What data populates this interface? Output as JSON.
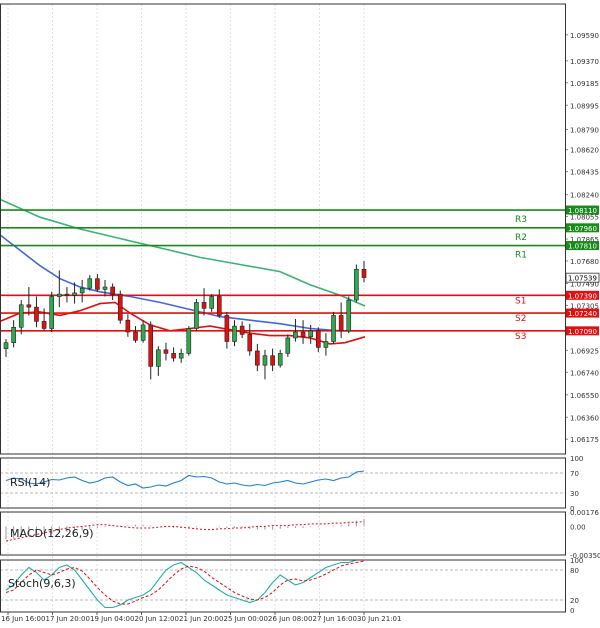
{
  "chart_data": {
    "type": "candlestick",
    "main": {
      "y_range": [
        1.0605,
        1.0985
      ],
      "y_ticks": [
        "1.09590",
        "1.09370",
        "1.09185",
        "1.08995",
        "1.08790",
        "1.08620",
        "1.08435",
        "1.08240",
        "1.08055",
        "1.07865",
        "1.07680",
        "1.07490",
        "1.07305",
        "1.06925",
        "1.06740",
        "1.06550",
        "1.06360",
        "1.06175"
      ],
      "price_tag": "1.07539",
      "price": 1.07539,
      "levels": [
        {
          "name": "R3",
          "value": 1.0811,
          "label": "1.08110",
          "color": "#1a8a1a"
        },
        {
          "name": "R2",
          "value": 1.0796,
          "label": "1.07960",
          "color": "#1a8a1a"
        },
        {
          "name": "R1",
          "value": 1.0781,
          "label": "1.07810",
          "color": "#1a8a1a"
        },
        {
          "name": "S1",
          "value": 1.0739,
          "label": "1.07390",
          "color": "#dd1111"
        },
        {
          "name": "S2",
          "value": 1.0724,
          "label": "1.07240",
          "color": "#dd1111"
        },
        {
          "name": "S3",
          "value": 1.0709,
          "label": "1.07090",
          "color": "#dd1111"
        }
      ],
      "candles": [
        [
          1.0694,
          1.0702,
          1.0687,
          1.0699
        ],
        [
          1.0699,
          1.0718,
          1.0695,
          1.0712
        ],
        [
          1.0712,
          1.0735,
          1.0706,
          1.0731
        ],
        [
          1.0731,
          1.0746,
          1.0722,
          1.0729
        ],
        [
          1.0729,
          1.0738,
          1.0712,
          1.0717
        ],
        [
          1.0717,
          1.0728,
          1.0709,
          1.0711
        ],
        [
          1.0711,
          1.0742,
          1.0708,
          1.0738
        ],
        [
          1.0738,
          1.076,
          1.0729,
          1.074
        ],
        [
          1.074,
          1.0746,
          1.0733,
          1.0739
        ],
        [
          1.0739,
          1.075,
          1.0732,
          1.0741
        ],
        [
          1.0741,
          1.0752,
          1.0733,
          1.0745
        ],
        [
          1.0745,
          1.0756,
          1.0743,
          1.0753
        ],
        [
          1.0753,
          1.0757,
          1.0742,
          1.0744
        ],
        [
          1.0744,
          1.0752,
          1.0738,
          1.0746
        ],
        [
          1.0746,
          1.0749,
          1.0735,
          1.074
        ],
        [
          1.074,
          1.0743,
          1.0715,
          1.0718
        ],
        [
          1.0718,
          1.0723,
          1.0704,
          1.0708
        ],
        [
          1.0708,
          1.0713,
          1.0699,
          1.0701
        ],
        [
          1.0701,
          1.0718,
          1.0699,
          1.0714
        ],
        [
          1.0714,
          1.0717,
          1.0668,
          1.0679
        ],
        [
          1.0679,
          1.0696,
          1.0671,
          1.0693
        ],
        [
          1.0693,
          1.0699,
          1.0684,
          1.069
        ],
        [
          1.069,
          1.0695,
          1.0683,
          1.0686
        ],
        [
          1.0686,
          1.0694,
          1.0682,
          1.069
        ],
        [
          1.069,
          1.0713,
          1.0688,
          1.0711
        ],
        [
          1.0711,
          1.0736,
          1.0709,
          1.0733
        ],
        [
          1.0733,
          1.0745,
          1.0722,
          1.0728
        ],
        [
          1.0728,
          1.074,
          1.0725,
          1.0738
        ],
        [
          1.0738,
          1.0744,
          1.072,
          1.0722
        ],
        [
          1.0722,
          1.0725,
          1.0694,
          1.07
        ],
        [
          1.07,
          1.0718,
          1.0696,
          1.0713
        ],
        [
          1.0713,
          1.0717,
          1.0703,
          1.0706
        ],
        [
          1.0706,
          1.0715,
          1.0688,
          1.0692
        ],
        [
          1.0692,
          1.0698,
          1.0675,
          1.068
        ],
        [
          1.068,
          1.0693,
          1.0668,
          1.0688
        ],
        [
          1.0688,
          1.0694,
          1.0675,
          1.068
        ],
        [
          1.068,
          1.0693,
          1.0678,
          1.069
        ],
        [
          1.069,
          1.0706,
          1.0687,
          1.0703
        ],
        [
          1.0703,
          1.0719,
          1.07,
          1.0708
        ],
        [
          1.0708,
          1.0718,
          1.0698,
          1.0704
        ],
        [
          1.0704,
          1.0714,
          1.0698,
          1.0709
        ],
        [
          1.0709,
          1.0712,
          1.0691,
          1.0695
        ],
        [
          1.0695,
          1.0707,
          1.0688,
          1.07
        ],
        [
          1.07,
          1.0725,
          1.0698,
          1.0722
        ],
        [
          1.0722,
          1.0733,
          1.0703,
          1.0709
        ],
        [
          1.0709,
          1.0738,
          1.0707,
          1.0735
        ],
        [
          1.0735,
          1.0765,
          1.0733,
          1.0761
        ],
        [
          1.0761,
          1.0768,
          1.075,
          1.0754
        ]
      ],
      "ma_slow": [
        [
          0,
          1.082
        ],
        [
          40,
          1.0805
        ],
        [
          80,
          1.0795
        ],
        [
          120,
          1.0787
        ],
        [
          160,
          1.0779
        ],
        [
          200,
          1.0771
        ],
        [
          240,
          1.0765
        ],
        [
          280,
          1.0759
        ],
        [
          310,
          1.0748
        ],
        [
          340,
          1.0739
        ],
        [
          365,
          1.073
        ]
      ],
      "ma_mid": [
        [
          0,
          1.079
        ],
        [
          20,
          1.0777
        ],
        [
          40,
          1.0764
        ],
        [
          60,
          1.0753
        ],
        [
          80,
          1.0746
        ],
        [
          100,
          1.0742
        ],
        [
          130,
          1.0738
        ],
        [
          160,
          1.0733
        ],
        [
          190,
          1.0727
        ],
        [
          220,
          1.0721
        ],
        [
          250,
          1.0718
        ],
        [
          280,
          1.0715
        ],
        [
          310,
          1.0711
        ],
        [
          340,
          1.0709
        ],
        [
          365,
          1.0709
        ]
      ],
      "ma_fast": [
        [
          0,
          1.0717
        ],
        [
          20,
          1.0724
        ],
        [
          40,
          1.0725
        ],
        [
          60,
          1.0722
        ],
        [
          80,
          1.0726
        ],
        [
          100,
          1.0732
        ],
        [
          115,
          1.0733
        ],
        [
          130,
          1.0724
        ],
        [
          150,
          1.0714
        ],
        [
          170,
          1.0709
        ],
        [
          190,
          1.0711
        ],
        [
          210,
          1.0713
        ],
        [
          230,
          1.071
        ],
        [
          250,
          1.0707
        ],
        [
          270,
          1.0705
        ],
        [
          290,
          1.0705
        ],
        [
          310,
          1.0703
        ],
        [
          330,
          1.0698
        ],
        [
          345,
          1.0699
        ],
        [
          365,
          1.0704
        ]
      ]
    },
    "x_labels": [
      "16 Jun 16:00",
      "17 Jun 20:00",
      "19 Jun 04:00",
      "20 Jun 12:00",
      "21 Jun 20:00",
      "25 Jun 00:00",
      "26 Jun 08:00",
      "27 Jun 16:00",
      "30 Jun 21:01"
    ],
    "rsi": {
      "label": "RSI(14)",
      "ticks": [
        "100",
        "70",
        "30",
        "0"
      ],
      "levels": [
        70,
        30
      ],
      "values": [
        55,
        60,
        58,
        50,
        48,
        52,
        57,
        56,
        60,
        62,
        55,
        50,
        53,
        60,
        62,
        52,
        45,
        48,
        40,
        42,
        46,
        44,
        50,
        55,
        65,
        62,
        63,
        60,
        52,
        48,
        50,
        46,
        44,
        47,
        45,
        50,
        52,
        55,
        50,
        48,
        52,
        56,
        58,
        55,
        60,
        62,
        72,
        74
      ]
    },
    "macd": {
      "label": "MACD(12,26,9)",
      "ticks": [
        "0.00176",
        "0.00",
        "-0.003505"
      ],
      "bars": [
        -0.0016,
        -0.0015,
        -0.0013,
        -0.0012,
        -0.0011,
        -0.001,
        -0.0009,
        -0.0008,
        -0.0007,
        -0.0006,
        -0.0005,
        -0.0004,
        -0.0002,
        -0.0001,
        0.0,
        0.0001,
        0.0001,
        0.0002,
        0.0002,
        0.0001,
        0.0,
        -0.0001,
        -0.0002,
        -0.0002,
        -0.0002,
        -0.0001,
        0.0,
        0.0,
        -0.0001,
        -0.0002,
        -0.0002,
        -0.0002,
        -0.0003,
        -0.0004,
        -0.0004,
        -0.0004,
        -0.0003,
        -0.0002,
        -0.0002,
        -0.0002,
        -0.0001,
        -0.0001,
        0.0,
        0.0001,
        0.0002,
        0.0004,
        0.0007,
        0.0009
      ],
      "signal": [
        -0.0018,
        -0.0016,
        -0.0014,
        -0.0012,
        -0.001,
        -0.0008,
        -0.0006,
        -0.0004,
        -0.0002,
        -0.0001,
        0.0,
        0.0001,
        0.0002,
        0.0002,
        0.0001,
        0.0,
        -0.0001,
        -0.0002,
        -0.0002,
        -0.0002,
        -0.0001,
        0.0,
        0.0,
        -0.0001,
        -0.0002,
        -0.0003,
        -0.0004,
        -0.0004,
        -0.0003,
        -0.0003,
        -0.0002,
        -0.0002,
        -0.0001,
        0.0,
        0.0,
        0.0001,
        0.0001,
        0.0001,
        0.0002,
        0.0002,
        0.0003,
        0.0003,
        0.0003,
        0.0004,
        0.0004,
        0.0005,
        0.0005,
        0.0006
      ]
    },
    "stoch": {
      "label": "Stoch(9,6,3)",
      "ticks": [
        "100",
        "80",
        "20",
        "0"
      ],
      "levels": [
        80,
        20
      ],
      "main": [
        40,
        50,
        70,
        85,
        75,
        60,
        70,
        85,
        90,
        80,
        60,
        40,
        20,
        5,
        5,
        10,
        20,
        25,
        30,
        40,
        60,
        80,
        90,
        95,
        85,
        75,
        60,
        50,
        40,
        30,
        25,
        20,
        15,
        20,
        35,
        55,
        70,
        60,
        50,
        55,
        65,
        75,
        85,
        90,
        95,
        95,
        100,
        100
      ],
      "signal": [
        35,
        40,
        55,
        70,
        80,
        75,
        70,
        75,
        82,
        85,
        78,
        62,
        45,
        30,
        18,
        12,
        12,
        18,
        25,
        30,
        40,
        55,
        70,
        82,
        88,
        85,
        78,
        65,
        55,
        45,
        35,
        28,
        22,
        20,
        25,
        35,
        50,
        60,
        62,
        58,
        60,
        65,
        72,
        80,
        88,
        92,
        95,
        98
      ]
    }
  }
}
